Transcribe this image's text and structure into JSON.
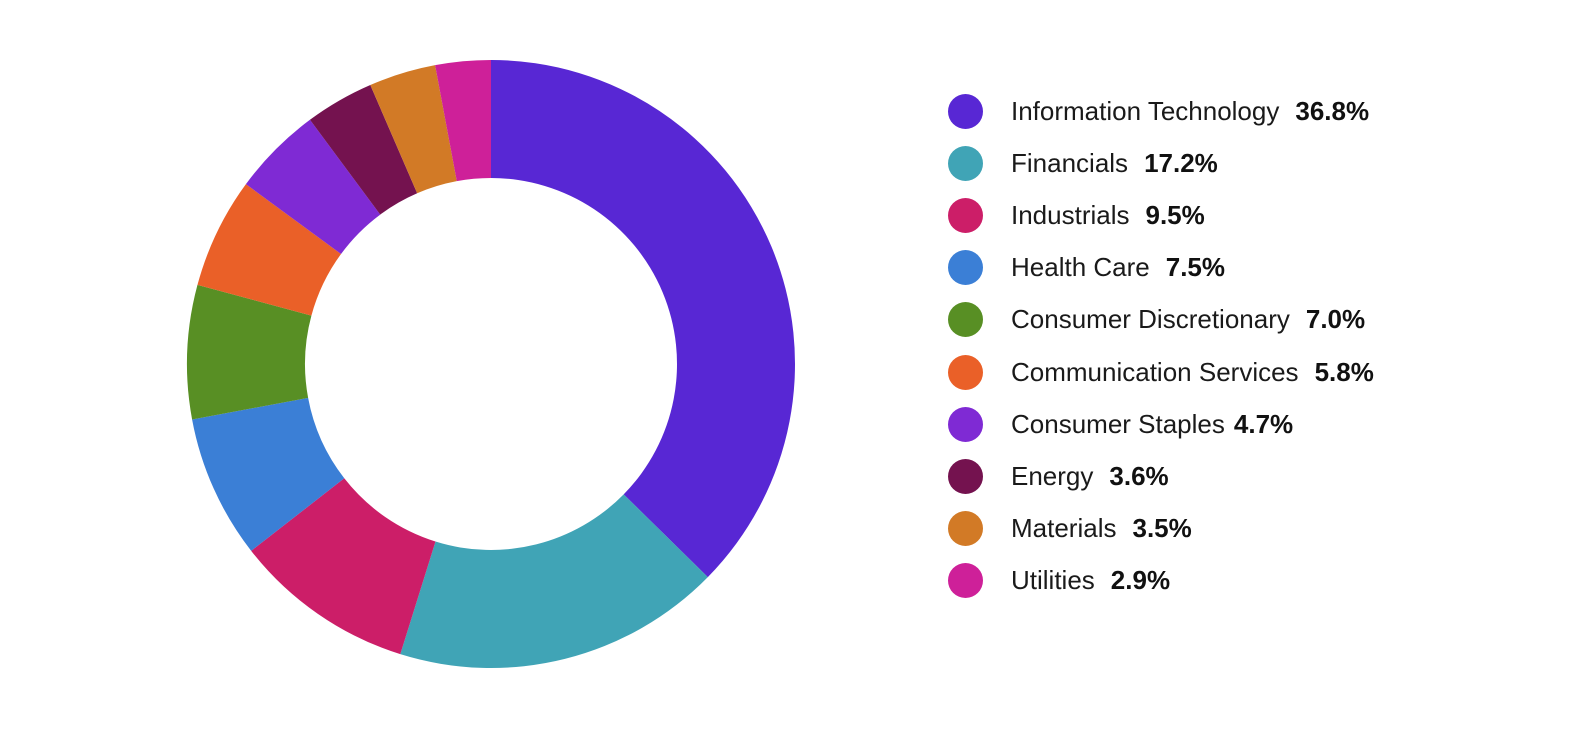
{
  "chart_data": {
    "type": "pie",
    "variant": "donut",
    "legend_position": "right",
    "slices": [
      {
        "label": "Information Technology",
        "value": 36.8,
        "display": "36.8%",
        "color": "#5827d4"
      },
      {
        "label": "Financials",
        "value": 17.2,
        "display": "17.2%",
        "color": "#40a4b6"
      },
      {
        "label": "Industrials",
        "value": 9.5,
        "display": "9.5%",
        "color": "#cc1e68"
      },
      {
        "label": "Health Care",
        "value": 7.5,
        "display": "7.5%",
        "color": "#3b7fd6"
      },
      {
        "label": "Consumer Discretionary",
        "value": 7.0,
        "display": "7.0%",
        "color": "#588f24"
      },
      {
        "label": "Communication Services",
        "value": 5.8,
        "display": "5.8%",
        "color": "#ea6028"
      },
      {
        "label": "Consumer Staples",
        "value": 4.7,
        "display": "4.7%",
        "color": "#7f2ad4"
      },
      {
        "label": "Energy",
        "value": 3.6,
        "display": "3.6%",
        "color": "#74124f"
      },
      {
        "label": "Materials",
        "value": 3.5,
        "display": "3.5%",
        "color": "#d27a26"
      },
      {
        "label": "Utilities",
        "value": 2.9,
        "display": "2.9%",
        "color": "#ce2099"
      }
    ]
  }
}
